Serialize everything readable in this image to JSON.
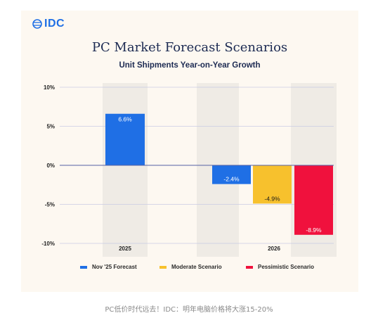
{
  "logo": {
    "text": "IDC"
  },
  "caption": "PC低价时代远去！IDC：明年电脑价格将大涨15-20%",
  "chart_data": {
    "type": "bar",
    "title": "PC Market Forecast Scenarios",
    "subtitle": "Unit Shipments Year-on-Year Growth",
    "categories": [
      "2025",
      "2026"
    ],
    "series": [
      {
        "name": "Nov '25 Forecast",
        "color": "#1f6fe5",
        "values": [
          6.6,
          -2.4
        ],
        "labels": [
          "6.6%",
          "-2.4%"
        ]
      },
      {
        "name": "Moderate Scenario",
        "color": "#f7c12d",
        "values": [
          null,
          -4.9
        ],
        "labels": [
          "",
          "-4.9%"
        ]
      },
      {
        "name": "Pessimistic Scenario",
        "color": "#f0113d",
        "values": [
          null,
          -8.9
        ],
        "labels": [
          "",
          "-8.9%"
        ]
      }
    ],
    "ylim": [
      -10,
      10
    ],
    "yticks": [
      10,
      5,
      0,
      -5,
      -10
    ],
    "ytick_labels": [
      "10%",
      "5%",
      "0%",
      "-5%",
      "-10%"
    ],
    "grid": true,
    "legend_position": "bottom"
  }
}
